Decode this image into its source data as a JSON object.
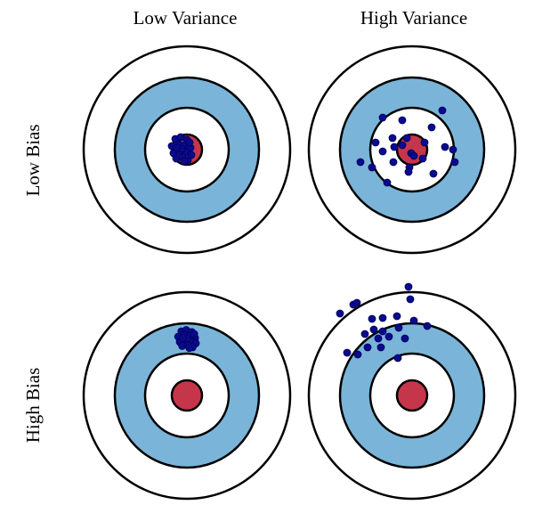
{
  "columns": [
    "Low Variance",
    "High Variance"
  ],
  "rows": [
    "Low Bias",
    "High Bias"
  ]
}
